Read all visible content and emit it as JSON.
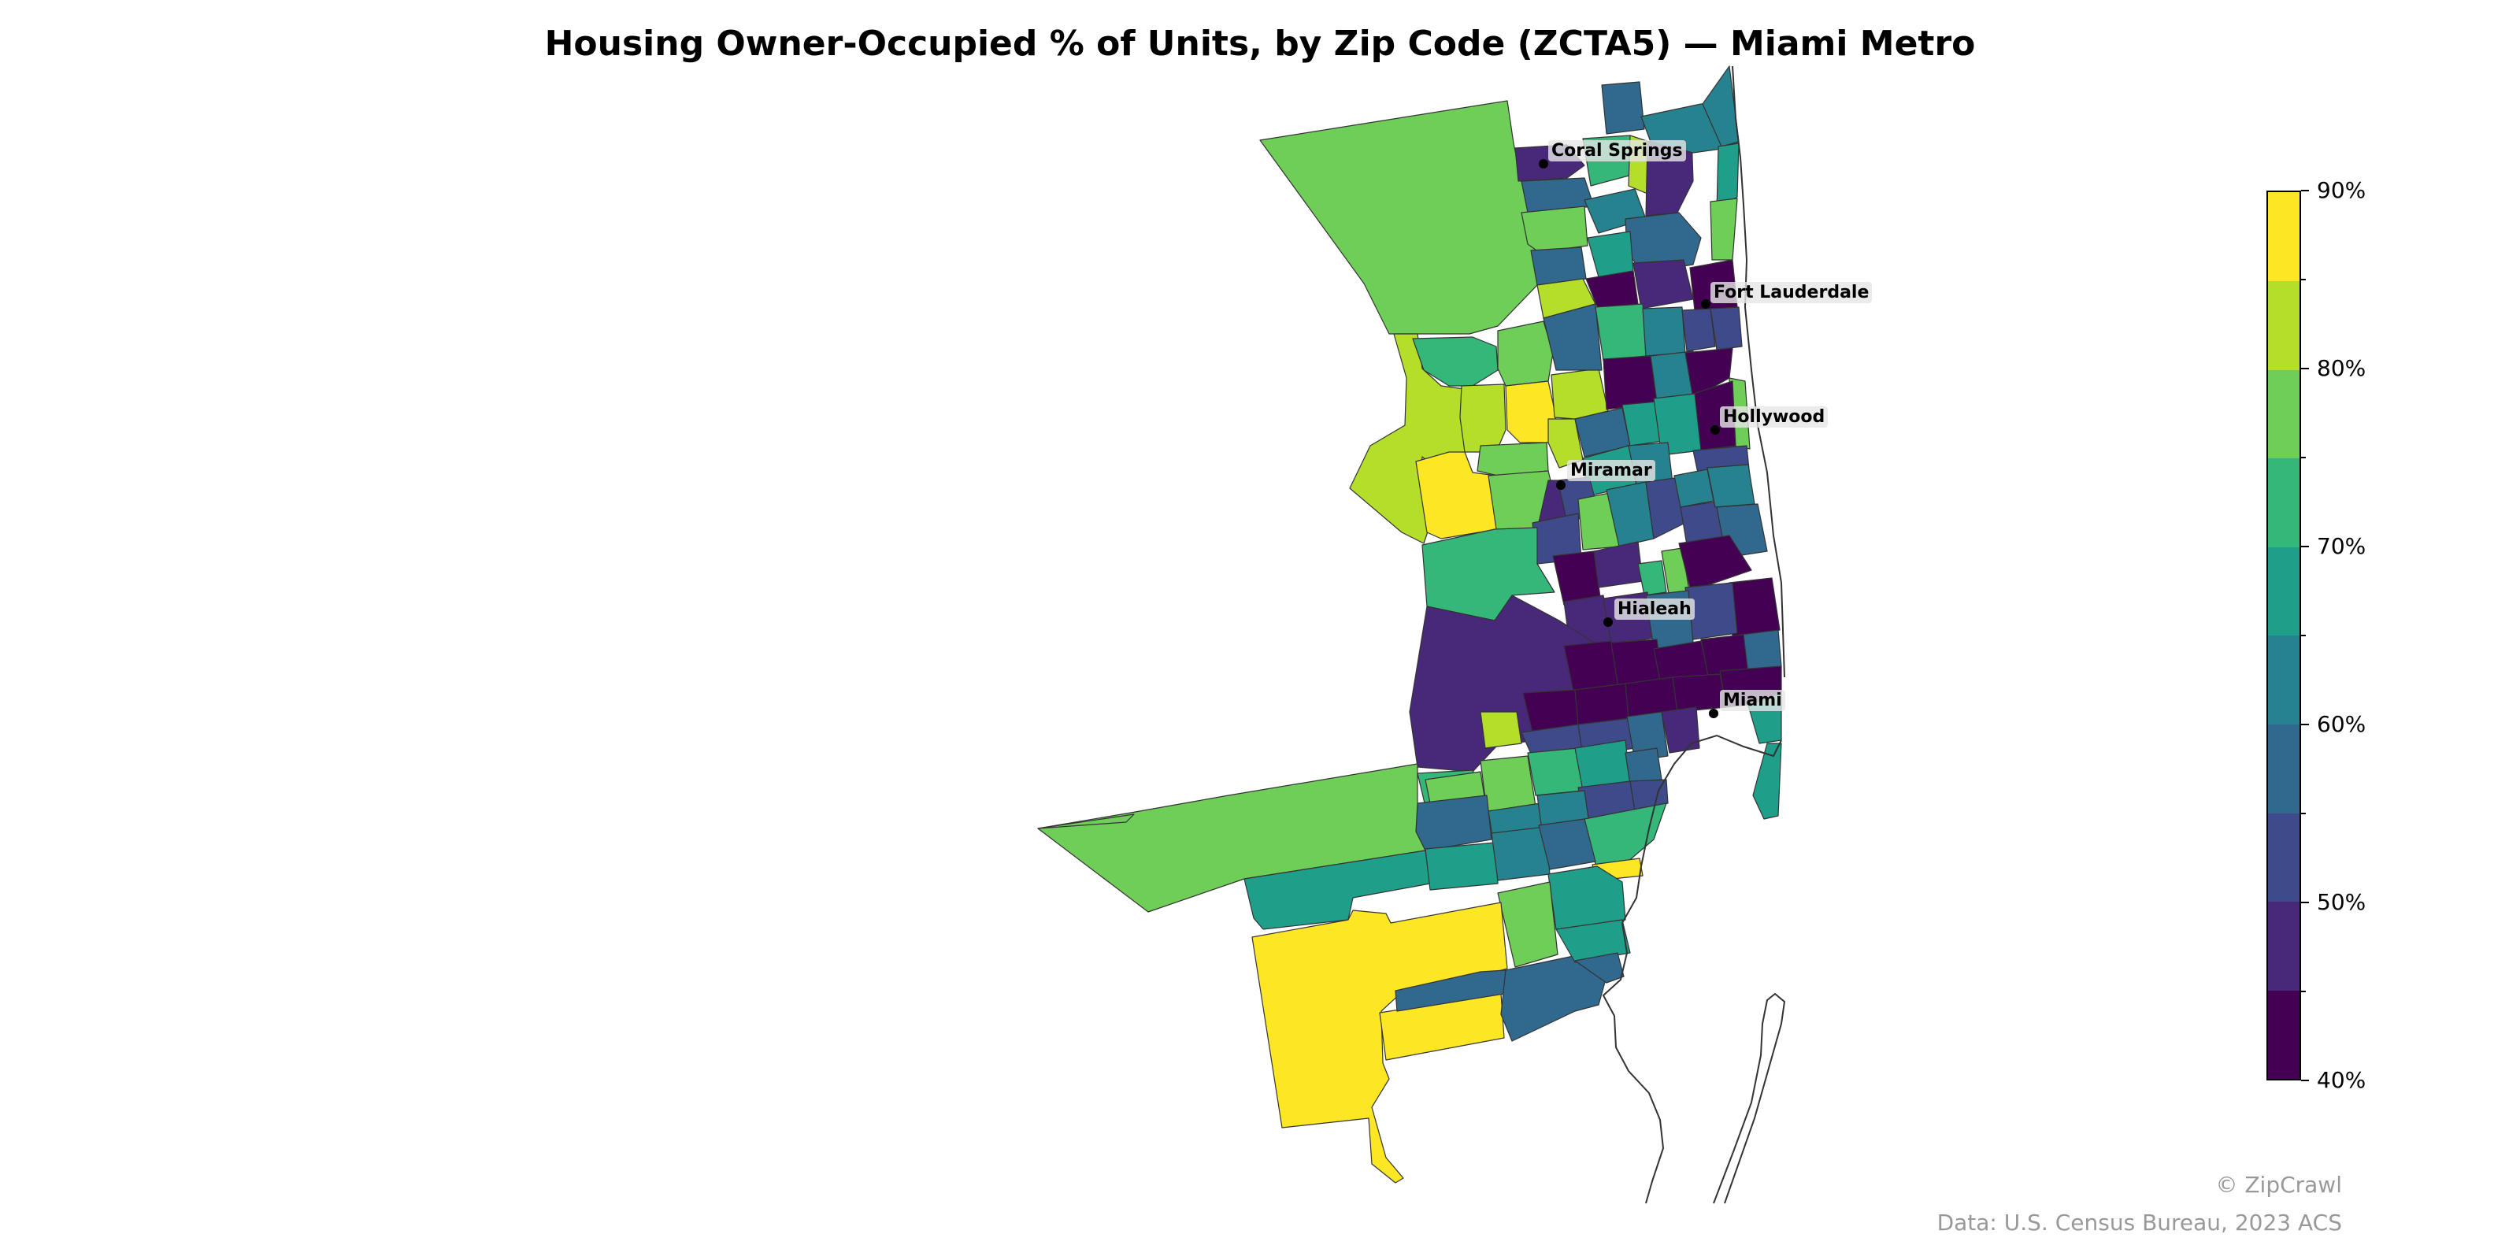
{
  "title": "Housing Owner-Occupied % of Units, by Zip Code (ZCTA5) — Miami Metro",
  "colorbar": {
    "min": 40,
    "max": 90,
    "step": 5,
    "tick_labels": [
      "90%",
      "80%",
      "70%",
      "60%",
      "50%",
      "40%"
    ],
    "colors": [
      "#440154",
      "#482878",
      "#3e4a89",
      "#31688e",
      "#26828e",
      "#1f9e89",
      "#35b779",
      "#6ece58",
      "#b5de2b",
      "#fde725"
    ]
  },
  "cities": [
    {
      "name": "Coral Springs"
    },
    {
      "name": "Fort Lauderdale"
    },
    {
      "name": "Hollywood"
    },
    {
      "name": "Miramar"
    },
    {
      "name": "Hialeah"
    },
    {
      "name": "Miami"
    }
  ],
  "footer": {
    "credit": "© ZipCrawl",
    "source": "Data: U.S. Census Bureau, 2023 ACS"
  }
}
